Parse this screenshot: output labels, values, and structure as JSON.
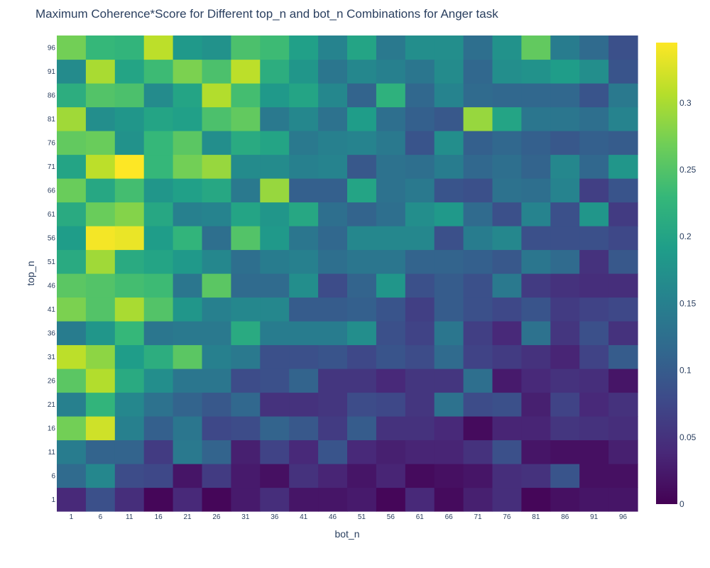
{
  "chart_data": {
    "type": "heatmap",
    "title": "Maximum Coherence*Score for Different top_n and bot_n Combinations for Anger task",
    "xlabel": "bot_n",
    "ylabel": "top_n",
    "x": [
      1,
      6,
      11,
      16,
      21,
      26,
      31,
      36,
      41,
      46,
      51,
      56,
      61,
      66,
      71,
      76,
      81,
      86,
      91,
      96
    ],
    "y": [
      1,
      6,
      11,
      16,
      21,
      26,
      31,
      36,
      41,
      46,
      51,
      56,
      61,
      66,
      71,
      76,
      81,
      86,
      91,
      96
    ],
    "zmin": 0,
    "zmax": 0.345,
    "colorscale": "Viridis",
    "colorbar_ticks": [
      0,
      0.05,
      0.1,
      0.15,
      0.2,
      0.25,
      0.3
    ],
    "colorbar_ticklabels": [
      "0",
      "0.05",
      "0.1",
      "0.15",
      "0.2",
      "0.25",
      "0.3"
    ],
    "z": [
      [
        0.04,
        0.085,
        0.045,
        0.005,
        0.04,
        0.005,
        0.025,
        0.045,
        0.02,
        0.02,
        0.025,
        0.005,
        0.04,
        0.01,
        0.03,
        0.045,
        0.005,
        0.015,
        0.02,
        0.02
      ],
      [
        0.12,
        0.16,
        0.08,
        0.075,
        0.02,
        0.06,
        0.025,
        0.015,
        0.05,
        0.035,
        0.02,
        0.035,
        0.01,
        0.015,
        0.02,
        0.045,
        0.05,
        0.09,
        0.015,
        0.015
      ],
      [
        0.145,
        0.11,
        0.11,
        0.06,
        0.14,
        0.11,
        0.03,
        0.07,
        0.04,
        0.09,
        0.04,
        0.03,
        0.035,
        0.035,
        0.05,
        0.085,
        0.02,
        0.015,
        0.015,
        0.03
      ],
      [
        0.27,
        0.32,
        0.15,
        0.105,
        0.135,
        0.075,
        0.08,
        0.11,
        0.095,
        0.06,
        0.1,
        0.05,
        0.05,
        0.04,
        0.01,
        0.035,
        0.035,
        0.055,
        0.05,
        0.045
      ],
      [
        0.15,
        0.225,
        0.16,
        0.13,
        0.11,
        0.095,
        0.115,
        0.05,
        0.05,
        0.055,
        0.08,
        0.075,
        0.055,
        0.13,
        0.08,
        0.085,
        0.03,
        0.07,
        0.04,
        0.05
      ],
      [
        0.255,
        0.305,
        0.21,
        0.17,
        0.135,
        0.135,
        0.08,
        0.085,
        0.11,
        0.055,
        0.055,
        0.04,
        0.055,
        0.055,
        0.125,
        0.025,
        0.04,
        0.05,
        0.045,
        0.02
      ],
      [
        0.31,
        0.285,
        0.19,
        0.215,
        0.255,
        0.15,
        0.14,
        0.085,
        0.085,
        0.09,
        0.075,
        0.09,
        0.08,
        0.12,
        0.07,
        0.06,
        0.05,
        0.035,
        0.07,
        0.1
      ],
      [
        0.145,
        0.18,
        0.23,
        0.135,
        0.14,
        0.14,
        0.21,
        0.145,
        0.145,
        0.145,
        0.17,
        0.085,
        0.07,
        0.135,
        0.065,
        0.04,
        0.13,
        0.055,
        0.085,
        0.05
      ],
      [
        0.275,
        0.25,
        0.3,
        0.25,
        0.18,
        0.15,
        0.16,
        0.16,
        0.1,
        0.1,
        0.105,
        0.09,
        0.065,
        0.1,
        0.085,
        0.075,
        0.09,
        0.06,
        0.07,
        0.075
      ],
      [
        0.255,
        0.25,
        0.24,
        0.235,
        0.135,
        0.255,
        0.12,
        0.12,
        0.17,
        0.08,
        0.11,
        0.18,
        0.085,
        0.1,
        0.085,
        0.14,
        0.06,
        0.05,
        0.045,
        0.045
      ],
      [
        0.21,
        0.295,
        0.21,
        0.2,
        0.185,
        0.16,
        0.125,
        0.145,
        0.15,
        0.125,
        0.135,
        0.135,
        0.11,
        0.11,
        0.105,
        0.095,
        0.135,
        0.12,
        0.05,
        0.095
      ],
      [
        0.19,
        0.34,
        0.335,
        0.19,
        0.225,
        0.125,
        0.25,
        0.185,
        0.135,
        0.115,
        0.16,
        0.16,
        0.16,
        0.085,
        0.145,
        0.16,
        0.085,
        0.085,
        0.085,
        0.075
      ],
      [
        0.21,
        0.265,
        0.28,
        0.205,
        0.15,
        0.155,
        0.2,
        0.18,
        0.205,
        0.125,
        0.11,
        0.125,
        0.17,
        0.185,
        0.12,
        0.085,
        0.155,
        0.085,
        0.18,
        0.06
      ],
      [
        0.265,
        0.205,
        0.24,
        0.18,
        0.195,
        0.205,
        0.14,
        0.29,
        0.105,
        0.105,
        0.2,
        0.13,
        0.14,
        0.09,
        0.085,
        0.13,
        0.125,
        0.155,
        0.065,
        0.09
      ],
      [
        0.2,
        0.31,
        0.345,
        0.23,
        0.27,
        0.29,
        0.165,
        0.165,
        0.15,
        0.155,
        0.095,
        0.13,
        0.125,
        0.145,
        0.115,
        0.125,
        0.11,
        0.16,
        0.115,
        0.18
      ],
      [
        0.26,
        0.265,
        0.175,
        0.23,
        0.255,
        0.17,
        0.21,
        0.2,
        0.14,
        0.15,
        0.155,
        0.14,
        0.09,
        0.17,
        0.105,
        0.115,
        0.105,
        0.095,
        0.105,
        0.1
      ],
      [
        0.295,
        0.17,
        0.18,
        0.2,
        0.195,
        0.245,
        0.26,
        0.14,
        0.16,
        0.13,
        0.19,
        0.125,
        0.105,
        0.095,
        0.29,
        0.2,
        0.135,
        0.135,
        0.125,
        0.155
      ],
      [
        0.215,
        0.25,
        0.245,
        0.165,
        0.2,
        0.305,
        0.24,
        0.185,
        0.2,
        0.16,
        0.11,
        0.22,
        0.115,
        0.155,
        0.12,
        0.115,
        0.115,
        0.115,
        0.09,
        0.14
      ],
      [
        0.165,
        0.3,
        0.2,
        0.235,
        0.275,
        0.245,
        0.31,
        0.215,
        0.18,
        0.135,
        0.16,
        0.15,
        0.135,
        0.165,
        0.115,
        0.17,
        0.175,
        0.19,
        0.17,
        0.09
      ],
      [
        0.27,
        0.23,
        0.225,
        0.31,
        0.185,
        0.175,
        0.245,
        0.235,
        0.195,
        0.155,
        0.2,
        0.14,
        0.17,
        0.17,
        0.125,
        0.175,
        0.26,
        0.145,
        0.12,
        0.085
      ]
    ]
  }
}
